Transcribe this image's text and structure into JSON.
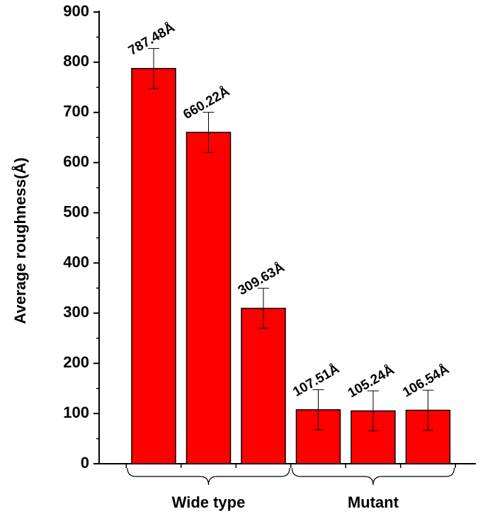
{
  "chart_data": {
    "type": "bar",
    "ylabel": "Average roughness(Å)",
    "ylim": [
      0,
      900
    ],
    "yticks": [
      "0",
      "100",
      "200",
      "300",
      "400",
      "500",
      "600",
      "700",
      "800",
      "900"
    ],
    "bar_color": "#ff0000",
    "bars": [
      {
        "value": 787.48,
        "error": 40,
        "label": "787.48Å"
      },
      {
        "value": 660.22,
        "error": 40,
        "label": "660.22Å"
      },
      {
        "value": 309.63,
        "error": 40,
        "label": "309.63Å"
      },
      {
        "value": 107.51,
        "error": 40,
        "label": "107.51Å"
      },
      {
        "value": 105.24,
        "error": 40,
        "label": "105.24Å"
      },
      {
        "value": 106.54,
        "error": 40,
        "label": "106.54Å"
      }
    ],
    "groups": [
      {
        "label": "Wide type",
        "bars": [
          0,
          1,
          2
        ]
      },
      {
        "label": "Mutant",
        "bars": [
          3,
          4,
          5
        ]
      }
    ]
  }
}
